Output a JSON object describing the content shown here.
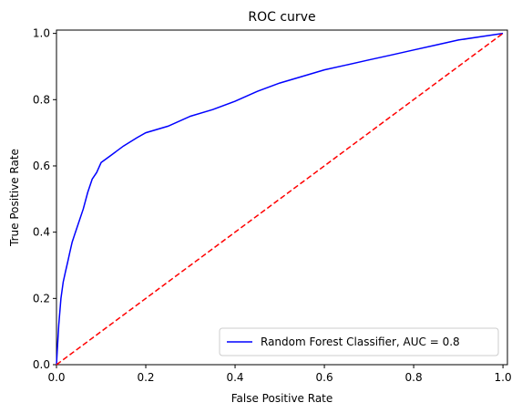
{
  "chart_data": {
    "type": "line",
    "title": "ROC curve",
    "xlabel": "False Positive Rate",
    "ylabel": "True Positive Rate",
    "xlim": [
      0.0,
      1.01
    ],
    "ylim": [
      0.0,
      1.01
    ],
    "xticks": [
      0.0,
      0.2,
      0.4,
      0.6,
      0.8,
      1.0
    ],
    "yticks": [
      0.0,
      0.2,
      0.4,
      0.6,
      0.8,
      1.0
    ],
    "xtick_labels": [
      "0.0",
      "0.2",
      "0.4",
      "0.6",
      "0.8",
      "1.0"
    ],
    "ytick_labels": [
      "0.0",
      "0.2",
      "0.4",
      "0.6",
      "0.8",
      "1.0"
    ],
    "grid": false,
    "legend_position": "lower-right",
    "series": [
      {
        "name": "Random Forest Classifier, AUC = 0.8",
        "color": "#0000ff",
        "style": "solid",
        "x": [
          0.0,
          0.002,
          0.005,
          0.01,
          0.015,
          0.02,
          0.025,
          0.03,
          0.035,
          0.04,
          0.05,
          0.06,
          0.07,
          0.08,
          0.09,
          0.1,
          0.12,
          0.15,
          0.18,
          0.2,
          0.25,
          0.3,
          0.35,
          0.4,
          0.45,
          0.5,
          0.55,
          0.6,
          0.65,
          0.7,
          0.75,
          0.8,
          0.85,
          0.9,
          0.95,
          1.0
        ],
        "y": [
          0.0,
          0.05,
          0.12,
          0.2,
          0.25,
          0.28,
          0.31,
          0.34,
          0.37,
          0.39,
          0.43,
          0.47,
          0.52,
          0.56,
          0.58,
          0.61,
          0.63,
          0.66,
          0.685,
          0.7,
          0.72,
          0.75,
          0.77,
          0.795,
          0.825,
          0.85,
          0.87,
          0.89,
          0.905,
          0.92,
          0.935,
          0.95,
          0.965,
          0.98,
          0.99,
          1.0
        ]
      },
      {
        "name": "",
        "color": "#ff0000",
        "style": "dashed",
        "x": [
          0.0,
          1.0
        ],
        "y": [
          0.0,
          1.0
        ]
      }
    ]
  }
}
